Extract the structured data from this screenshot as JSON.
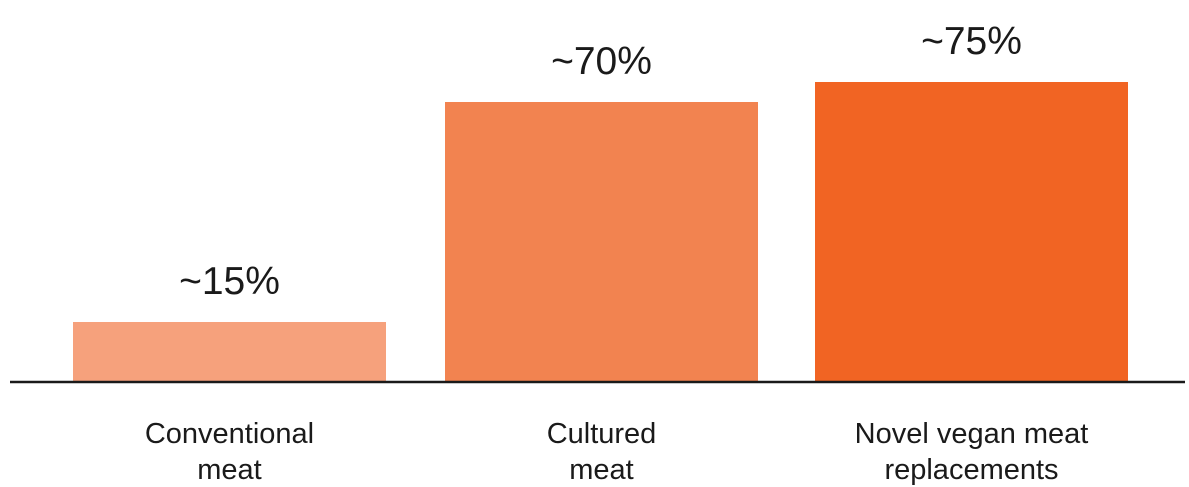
{
  "chart_data": {
    "type": "bar",
    "categories": [
      [
        "Conventional",
        "meat"
      ],
      [
        "Cultured",
        "meat"
      ],
      [
        "Novel vegan meat",
        "replacements"
      ]
    ],
    "values": [
      15,
      70,
      75
    ],
    "data_labels": [
      "~15%",
      "~70%",
      "~75%"
    ],
    "bar_colors": [
      "#F6A17C",
      "#F28350",
      "#F16423"
    ],
    "baseline_color": "#1a1a1a",
    "ylim": [
      0,
      80
    ],
    "grid": false,
    "legend": "none"
  }
}
